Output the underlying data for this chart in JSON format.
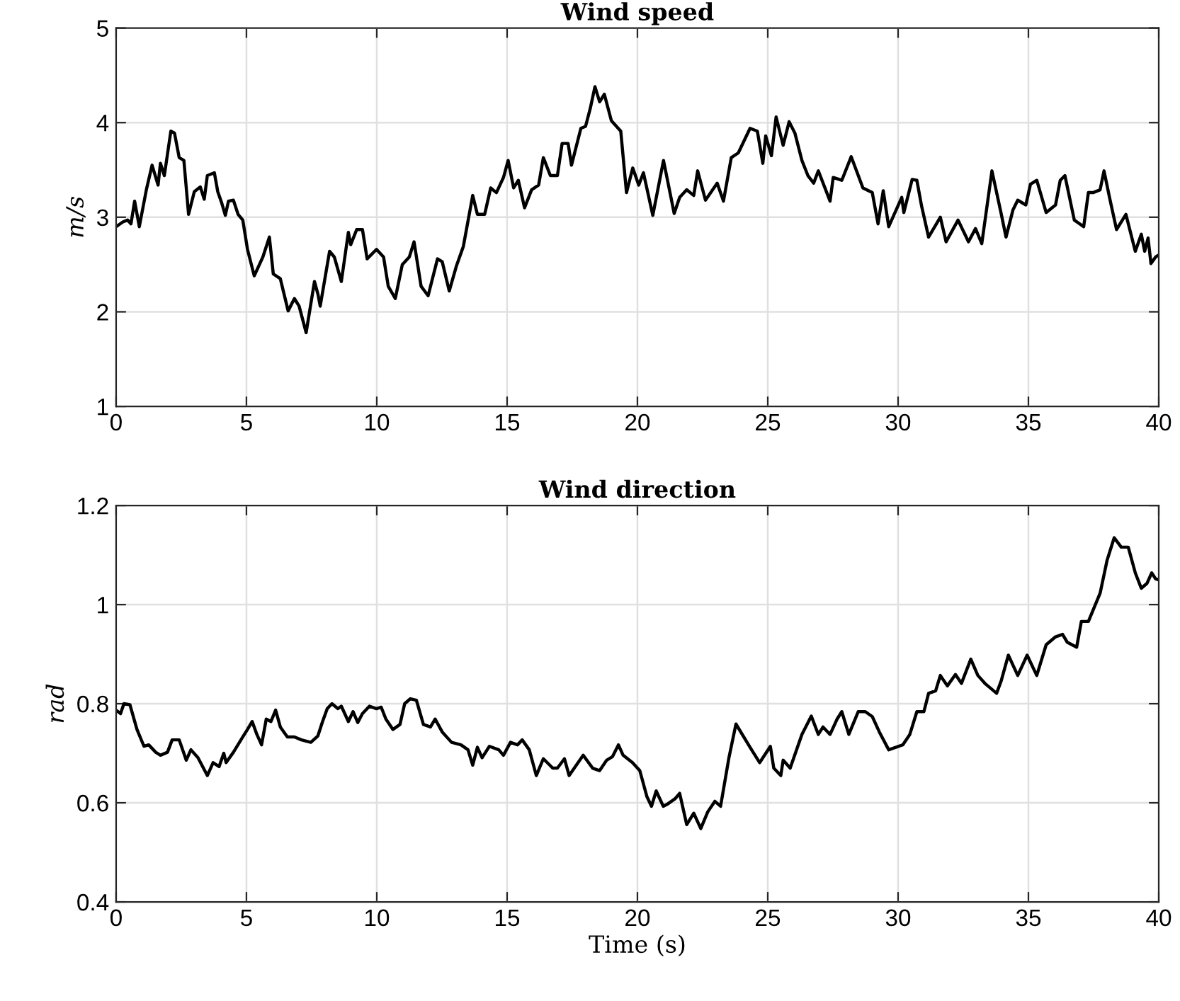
{
  "chart_data": [
    {
      "type": "line",
      "title": "Wind speed",
      "ylabel": "m/s",
      "xlim": [
        0,
        40
      ],
      "ylim": [
        1,
        5
      ],
      "xticks": [
        0,
        5,
        10,
        15,
        20,
        25,
        30,
        35,
        40
      ],
      "yticks": [
        1,
        2,
        3,
        4,
        5
      ],
      "grid": true,
      "marker": "none",
      "line_style": "solid",
      "series": [
        {
          "color": "#000000",
          "x": [
            0,
            0.26,
            0.44,
            0.57,
            0.71,
            0.89,
            1.16,
            1.38,
            1.61,
            1.7,
            1.85,
            2.1,
            2.24,
            2.42,
            2.6,
            2.78,
            3.0,
            3.23,
            3.38,
            3.5,
            3.77,
            3.9,
            4.04,
            4.19,
            4.31,
            4.5,
            4.68,
            4.86,
            5.04,
            5.3,
            5.63,
            5.88,
            6.03,
            6.3,
            6.6,
            6.84,
            7.02,
            7.29,
            7.61,
            7.74,
            7.83,
            8.19,
            8.37,
            8.64,
            8.91,
            9.0,
            9.23,
            9.45,
            9.63,
            9.99,
            10.26,
            10.44,
            10.71,
            10.98,
            11.25,
            11.43,
            11.7,
            11.97,
            12.33,
            12.51,
            12.78,
            13.05,
            13.32,
            13.68,
            13.86,
            14.14,
            14.37,
            14.59,
            14.86,
            15.04,
            15.25,
            15.43,
            15.67,
            15.94,
            16.21,
            16.39,
            16.66,
            16.93,
            17.11,
            17.34,
            17.47,
            17.83,
            18.01,
            18.19,
            18.37,
            18.55,
            18.73,
            19.0,
            19.36,
            19.58,
            19.82,
            20.05,
            20.23,
            20.59,
            21.0,
            21.41,
            21.62,
            21.89,
            22.16,
            22.31,
            22.61,
            23.06,
            23.3,
            23.6,
            23.87,
            24.32,
            24.6,
            24.81,
            24.92,
            25.14,
            25.32,
            25.59,
            25.82,
            26.04,
            26.31,
            26.54,
            26.76,
            26.94,
            27.39,
            27.51,
            27.84,
            28.2,
            28.65,
            29.01,
            29.23,
            29.43,
            29.64,
            30.14,
            30.22,
            30.54,
            30.72,
            30.9,
            31.17,
            31.62,
            31.84,
            32.3,
            32.7,
            32.97,
            33.21,
            33.6,
            33.96,
            34.14,
            34.41,
            34.59,
            34.9,
            35.08,
            35.32,
            35.68,
            36.04,
            36.22,
            36.4,
            36.76,
            37.12,
            37.3,
            37.48,
            37.75,
            37.9,
            38.11,
            38.38,
            38.74,
            39.1,
            39.33,
            39.46,
            39.59,
            39.7,
            39.88,
            40
          ],
          "values": [
            2.9,
            2.95,
            2.97,
            2.93,
            3.17,
            2.9,
            3.29,
            3.55,
            3.34,
            3.57,
            3.44,
            3.91,
            3.89,
            3.63,
            3.6,
            3.03,
            3.27,
            3.32,
            3.19,
            3.44,
            3.47,
            3.27,
            3.16,
            3.02,
            3.17,
            3.18,
            3.03,
            2.97,
            2.66,
            2.38,
            2.58,
            2.79,
            2.4,
            2.35,
            2.01,
            2.14,
            2.06,
            1.78,
            2.32,
            2.19,
            2.06,
            2.64,
            2.58,
            2.32,
            2.84,
            2.71,
            2.87,
            2.87,
            2.56,
            2.66,
            2.58,
            2.27,
            2.14,
            2.5,
            2.58,
            2.74,
            2.27,
            2.17,
            2.56,
            2.53,
            2.22,
            2.48,
            2.69,
            3.23,
            3.03,
            3.03,
            3.31,
            3.26,
            3.42,
            3.6,
            3.31,
            3.39,
            3.1,
            3.29,
            3.34,
            3.63,
            3.44,
            3.44,
            3.78,
            3.78,
            3.55,
            3.94,
            3.96,
            4.15,
            4.38,
            4.22,
            4.3,
            4.02,
            3.91,
            3.26,
            3.52,
            3.34,
            3.47,
            3.02,
            3.6,
            3.04,
            3.21,
            3.29,
            3.23,
            3.49,
            3.18,
            3.36,
            3.17,
            3.63,
            3.68,
            3.94,
            3.91,
            3.57,
            3.86,
            3.65,
            4.06,
            3.76,
            4.01,
            3.89,
            3.6,
            3.44,
            3.36,
            3.49,
            3.17,
            3.42,
            3.39,
            3.64,
            3.31,
            3.26,
            2.93,
            3.28,
            2.9,
            3.21,
            3.05,
            3.4,
            3.39,
            3.12,
            2.79,
            3.0,
            2.74,
            2.97,
            2.74,
            2.88,
            2.72,
            3.49,
            3.03,
            2.79,
            3.08,
            3.18,
            3.13,
            3.35,
            3.39,
            3.05,
            3.13,
            3.39,
            3.44,
            2.97,
            2.9,
            3.26,
            3.26,
            3.29,
            3.49,
            3.21,
            2.87,
            3.03,
            2.64,
            2.82,
            2.64,
            2.78,
            2.51,
            2.58,
            2.6
          ]
        }
      ]
    },
    {
      "type": "line",
      "title": "Wind direction",
      "xlabel": "Time (s)",
      "ylabel": "rad",
      "xlim": [
        0,
        40
      ],
      "ylim": [
        0.4,
        1.2
      ],
      "xticks": [
        0,
        5,
        10,
        15,
        20,
        25,
        30,
        35,
        40
      ],
      "yticks": [
        0.4,
        0.6,
        0.8,
        {
          "value": 1,
          "label": "1"
        },
        1.2
      ],
      "grid": true,
      "marker": "none",
      "line_style": "solid",
      "series": [
        {
          "color": "#000000",
          "x": [
            0,
            0.17,
            0.3,
            0.53,
            0.8,
            1.07,
            1.25,
            1.52,
            1.7,
            1.97,
            2.15,
            2.42,
            2.69,
            2.87,
            3.14,
            3.5,
            3.72,
            3.95,
            4.13,
            4.22,
            4.5,
            4.86,
            5.04,
            5.22,
            5.4,
            5.58,
            5.76,
            5.94,
            6.12,
            6.3,
            6.57,
            6.84,
            7.11,
            7.47,
            7.74,
            7.92,
            8.1,
            8.28,
            8.51,
            8.64,
            8.91,
            9.09,
            9.27,
            9.45,
            9.72,
            9.99,
            10.17,
            10.35,
            10.62,
            10.89,
            11.07,
            11.29,
            11.52,
            11.79,
            12.06,
            12.24,
            12.51,
            12.87,
            13.23,
            13.5,
            13.68,
            13.86,
            14.04,
            14.32,
            14.68,
            14.86,
            15.13,
            15.4,
            15.58,
            15.85,
            16.12,
            16.39,
            16.75,
            16.93,
            17.2,
            17.38,
            17.92,
            18.28,
            18.55,
            18.82,
            19.04,
            19.27,
            19.45,
            19.81,
            20.09,
            20.36,
            20.54,
            20.72,
            20.99,
            21.17,
            21.44,
            21.62,
            21.89,
            22.16,
            22.43,
            22.7,
            22.97,
            23.19,
            23.51,
            23.78,
            24.32,
            24.69,
            25.1,
            25.23,
            25.5,
            25.59,
            25.86,
            26.31,
            26.67,
            26.94,
            27.12,
            27.39,
            27.66,
            27.84,
            28.11,
            28.47,
            28.74,
            29.01,
            29.28,
            29.64,
            30.18,
            30.45,
            30.72,
            30.99,
            31.17,
            31.44,
            31.62,
            31.89,
            32.2,
            32.43,
            32.79,
            33.06,
            33.33,
            33.78,
            33.96,
            34.23,
            34.59,
            34.95,
            35.32,
            35.68,
            36.04,
            36.31,
            36.49,
            36.85,
            37.03,
            37.3,
            37.75,
            38.02,
            38.29,
            38.56,
            38.83,
            39.1,
            39.33,
            39.55,
            39.73,
            39.88,
            40
          ],
          "values": [
            0.787,
            0.78,
            0.8,
            0.798,
            0.748,
            0.714,
            0.717,
            0.702,
            0.696,
            0.702,
            0.727,
            0.727,
            0.686,
            0.707,
            0.691,
            0.655,
            0.681,
            0.673,
            0.7,
            0.681,
            0.702,
            0.733,
            0.748,
            0.764,
            0.738,
            0.717,
            0.769,
            0.764,
            0.787,
            0.753,
            0.733,
            0.733,
            0.727,
            0.722,
            0.735,
            0.764,
            0.79,
            0.8,
            0.79,
            0.795,
            0.764,
            0.784,
            0.762,
            0.78,
            0.795,
            0.79,
            0.793,
            0.769,
            0.748,
            0.758,
            0.8,
            0.81,
            0.807,
            0.758,
            0.753,
            0.769,
            0.743,
            0.722,
            0.717,
            0.707,
            0.676,
            0.712,
            0.691,
            0.714,
            0.707,
            0.696,
            0.722,
            0.717,
            0.727,
            0.707,
            0.655,
            0.689,
            0.67,
            0.67,
            0.689,
            0.655,
            0.696,
            0.67,
            0.665,
            0.686,
            0.693,
            0.717,
            0.696,
            0.681,
            0.665,
            0.613,
            0.593,
            0.624,
            0.593,
            0.598,
            0.608,
            0.619,
            0.556,
            0.579,
            0.548,
            0.582,
            0.603,
            0.593,
            0.691,
            0.759,
            0.712,
            0.681,
            0.714,
            0.67,
            0.655,
            0.686,
            0.67,
            0.738,
            0.775,
            0.738,
            0.753,
            0.738,
            0.769,
            0.784,
            0.738,
            0.784,
            0.784,
            0.774,
            0.743,
            0.707,
            0.717,
            0.738,
            0.784,
            0.784,
            0.821,
            0.826,
            0.857,
            0.836,
            0.859,
            0.841,
            0.89,
            0.857,
            0.841,
            0.821,
            0.847,
            0.898,
            0.857,
            0.898,
            0.857,
            0.919,
            0.935,
            0.94,
            0.924,
            0.914,
            0.966,
            0.966,
            1.023,
            1.09,
            1.135,
            1.116,
            1.116,
            1.064,
            1.033,
            1.043,
            1.064,
            1.052,
            1.05
          ]
        }
      ]
    }
  ]
}
